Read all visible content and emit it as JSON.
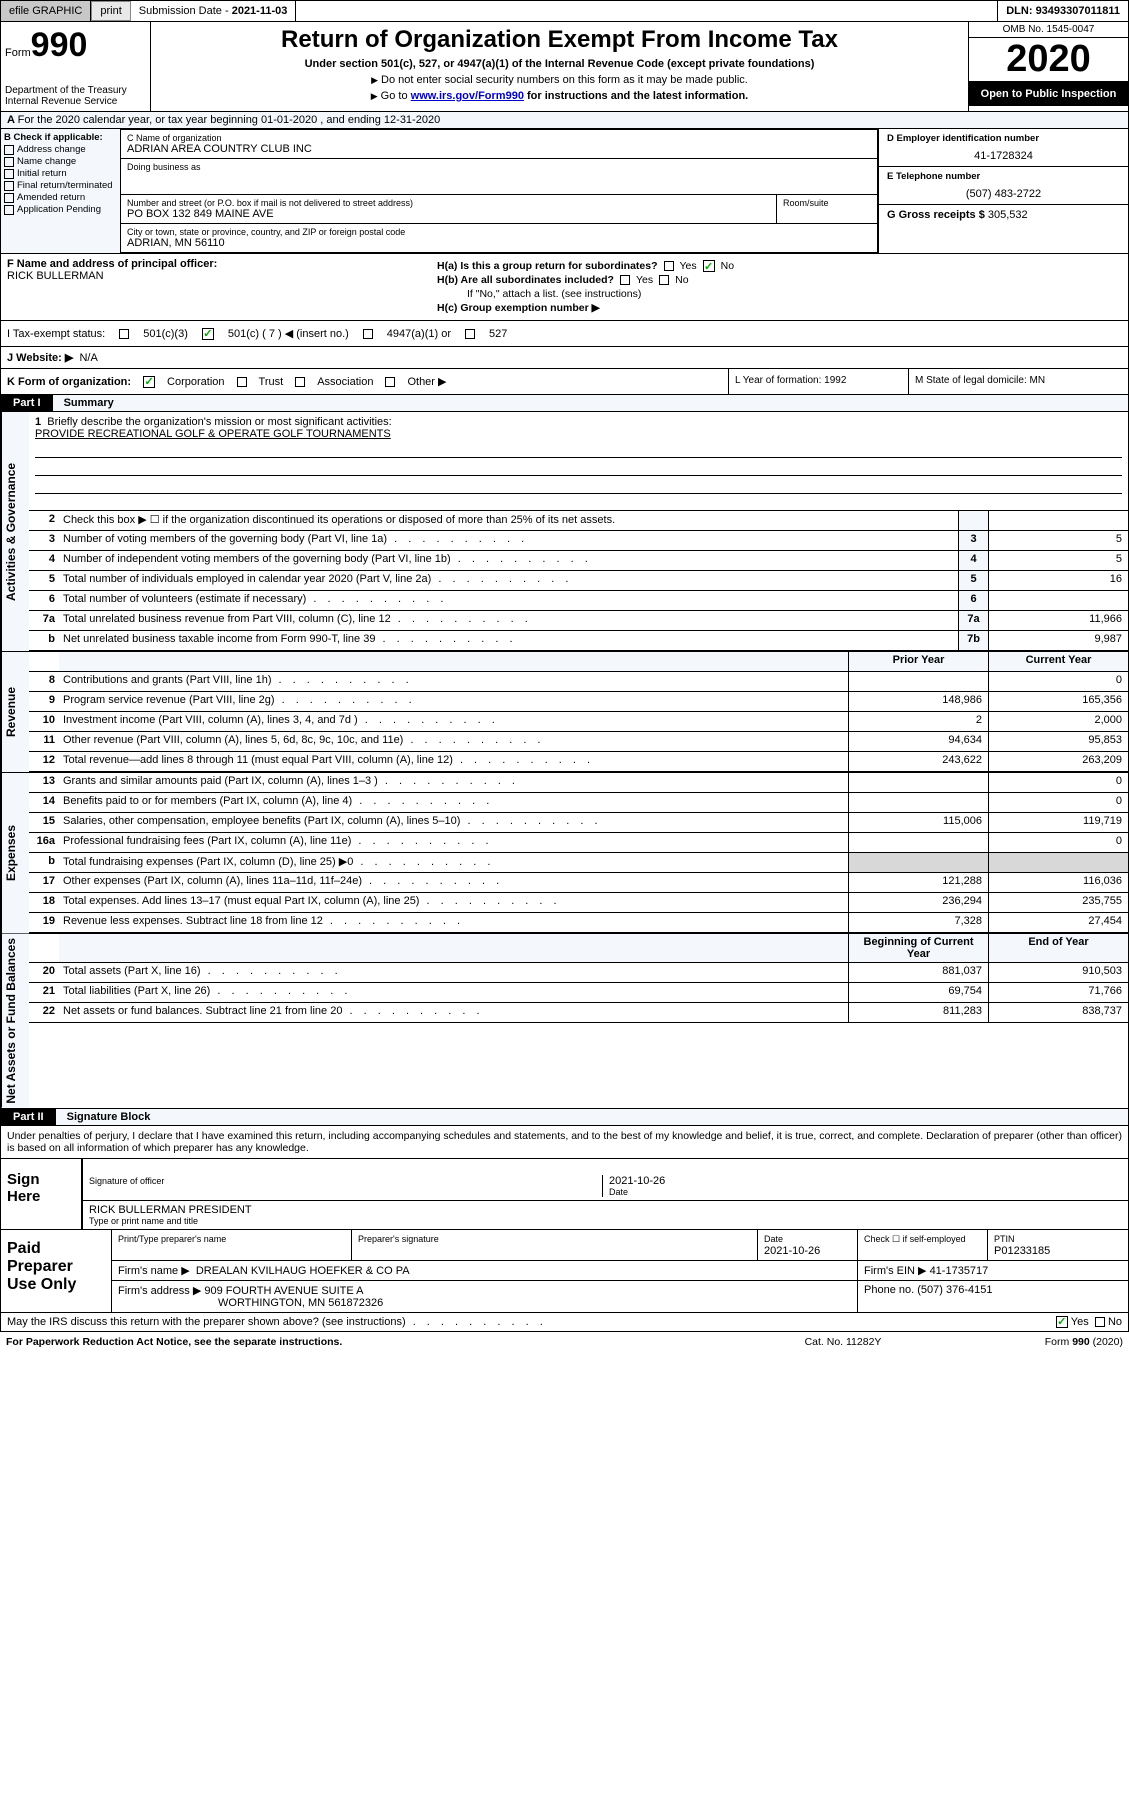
{
  "topbar": {
    "efile": "efile GRAPHIC",
    "print": "print",
    "submission": "Submission Date",
    "submission_date": "2021-11-03",
    "dln_label": "DLN:",
    "dln": "93493307011811"
  },
  "header": {
    "form": "Form",
    "num": "990",
    "dept": "Department of the Treasury",
    "irs": "Internal Revenue Service",
    "title": "Return of Organization Exempt From Income Tax",
    "sub": "Under section 501(c), 527, or 4947(a)(1) of the Internal Revenue Code (except private foundations)",
    "note1": "Do not enter social security numbers on this form as it may be made public.",
    "note2_pre": "Go to ",
    "note2_link": "www.irs.gov/Form990",
    "note2_post": " for instructions and the latest information.",
    "omb": "OMB No. 1545-0047",
    "year": "2020",
    "inspection": "Open to Public Inspection"
  },
  "period": {
    "label_a": "A",
    "text": "For the 2020 calendar year, or tax year beginning 01-01-2020    , and ending 12-31-2020"
  },
  "colB": {
    "label": "B Check if applicable:",
    "opts": [
      "Address change",
      "Name change",
      "Initial return",
      "Final return/terminated",
      "Amended return",
      "Application Pending"
    ]
  },
  "colC": {
    "name_label": "C Name of organization",
    "name": "ADRIAN AREA COUNTRY CLUB INC",
    "dba_label": "Doing business as",
    "street_label": "Number and street (or P.O. box if mail is not delivered to street address)",
    "street": "PO BOX 132 849 MAINE AVE",
    "room_label": "Room/suite",
    "city_label": "City or town, state or province, country, and ZIP or foreign postal code",
    "city": "ADRIAN, MN  56110"
  },
  "colD": {
    "d_label": "D Employer identification number",
    "ein": "41-1728324",
    "e_label": "E Telephone number",
    "phone": "(507) 483-2722",
    "g_label": "G Gross receipts $",
    "gross": "305,532"
  },
  "rowF": {
    "f_label": "F  Name and address of principal officer:",
    "officer": "RICK BULLERMAN",
    "ha": "H(a)  Is this a group return for subordinates?",
    "ha_yes": "Yes",
    "ha_no": "No",
    "hb": "H(b)  Are all subordinates included?",
    "hb_note": "If \"No,\" attach a list. (see instructions)",
    "hc": "H(c)  Group exemption number ▶"
  },
  "taxStatus": {
    "label": "I  Tax-exempt status:",
    "o1": "501(c)(3)",
    "o2": "501(c) ( 7 ) ◀ (insert no.)",
    "o3": "4947(a)(1) or",
    "o4": "527"
  },
  "website": {
    "label": "J  Website: ▶",
    "value": "N/A"
  },
  "rowK": {
    "label": "K Form of organization:",
    "o1": "Corporation",
    "o2": "Trust",
    "o3": "Association",
    "o4": "Other ▶",
    "l": "L Year of formation: 1992",
    "m": "M State of legal domicile: MN"
  },
  "part1": {
    "tag": "Part I",
    "title": "Summary"
  },
  "summary": {
    "q1": "Briefly describe the organization's mission or most significant activities:",
    "q1v": "PROVIDE RECREATIONAL GOLF & OPERATE GOLF TOURNAMENTS",
    "q2": "Check this box ▶ ☐  if the organization discontinued its operations or disposed of more than 25% of its net assets.",
    "rows": [
      {
        "n": "3",
        "d": "Number of voting members of the governing body (Part VI, line 1a)",
        "b": "3",
        "v": "5"
      },
      {
        "n": "4",
        "d": "Number of independent voting members of the governing body (Part VI, line 1b)",
        "b": "4",
        "v": "5"
      },
      {
        "n": "5",
        "d": "Total number of individuals employed in calendar year 2020 (Part V, line 2a)",
        "b": "5",
        "v": "16"
      },
      {
        "n": "6",
        "d": "Total number of volunteers (estimate if necessary)",
        "b": "6",
        "v": ""
      },
      {
        "n": "7a",
        "d": "Total unrelated business revenue from Part VIII, column (C), line 12",
        "b": "7a",
        "v": "11,966"
      },
      {
        "n": "b",
        "d": "Net unrelated business taxable income from Form 990-T, line 39",
        "b": "7b",
        "v": "9,987"
      }
    ],
    "hdr_prior": "Prior Year",
    "hdr_curr": "Current Year",
    "revenue": [
      {
        "n": "8",
        "d": "Contributions and grants (Part VIII, line 1h)",
        "p": "",
        "c": "0"
      },
      {
        "n": "9",
        "d": "Program service revenue (Part VIII, line 2g)",
        "p": "148,986",
        "c": "165,356"
      },
      {
        "n": "10",
        "d": "Investment income (Part VIII, column (A), lines 3, 4, and 7d )",
        "p": "2",
        "c": "2,000"
      },
      {
        "n": "11",
        "d": "Other revenue (Part VIII, column (A), lines 5, 6d, 8c, 9c, 10c, and 11e)",
        "p": "94,634",
        "c": "95,853"
      },
      {
        "n": "12",
        "d": "Total revenue—add lines 8 through 11 (must equal Part VIII, column (A), line 12)",
        "p": "243,622",
        "c": "263,209"
      }
    ],
    "expenses": [
      {
        "n": "13",
        "d": "Grants and similar amounts paid (Part IX, column (A), lines 1–3 )",
        "p": "",
        "c": "0"
      },
      {
        "n": "14",
        "d": "Benefits paid to or for members (Part IX, column (A), line 4)",
        "p": "",
        "c": "0"
      },
      {
        "n": "15",
        "d": "Salaries, other compensation, employee benefits (Part IX, column (A), lines 5–10)",
        "p": "115,006",
        "c": "119,719"
      },
      {
        "n": "16a",
        "d": "Professional fundraising fees (Part IX, column (A), line 11e)",
        "p": "",
        "c": "0"
      },
      {
        "n": "b",
        "d": "Total fundraising expenses (Part IX, column (D), line 25) ▶0",
        "p": "—",
        "c": "—"
      },
      {
        "n": "17",
        "d": "Other expenses (Part IX, column (A), lines 11a–11d, 11f–24e)",
        "p": "121,288",
        "c": "116,036"
      },
      {
        "n": "18",
        "d": "Total expenses. Add lines 13–17 (must equal Part IX, column (A), line 25)",
        "p": "236,294",
        "c": "235,755"
      },
      {
        "n": "19",
        "d": "Revenue less expenses. Subtract line 18 from line 12",
        "p": "7,328",
        "c": "27,454"
      }
    ],
    "hdr_begin": "Beginning of Current Year",
    "hdr_end": "End of Year",
    "netassets": [
      {
        "n": "20",
        "d": "Total assets (Part X, line 16)",
        "p": "881,037",
        "c": "910,503"
      },
      {
        "n": "21",
        "d": "Total liabilities (Part X, line 26)",
        "p": "69,754",
        "c": "71,766"
      },
      {
        "n": "22",
        "d": "Net assets or fund balances. Subtract line 21 from line 20",
        "p": "811,283",
        "c": "838,737"
      }
    ]
  },
  "sideLabels": {
    "gov": "Activities & Governance",
    "rev": "Revenue",
    "exp": "Expenses",
    "net": "Net Assets or Fund Balances"
  },
  "part2": {
    "tag": "Part II",
    "title": "Signature Block"
  },
  "sig": {
    "penalty": "Under penalties of perjury, I declare that I have examined this return, including accompanying schedules and statements, and to the best of my knowledge and belief, it is true, correct, and complete. Declaration of preparer (other than officer) is based on all information of which preparer has any knowledge.",
    "sign_here": "Sign Here",
    "sig_officer": "Signature of officer",
    "date_label": "Date",
    "date": "2021-10-26",
    "name_title": "RICK BULLERMAN  PRESIDENT",
    "type_label": "Type or print name and title"
  },
  "prep": {
    "label": "Paid Preparer Use Only",
    "h1": "Print/Type preparer's name",
    "h2": "Preparer's signature",
    "h3": "Date",
    "h3v": "2021-10-26",
    "h4": "Check ☐ if self-employed",
    "h5": "PTIN",
    "ptin": "P01233185",
    "firm_label": "Firm's name    ▶",
    "firm": "DREALAN KVILHAUG HOEFKER & CO PA",
    "ein_label": "Firm's EIN ▶",
    "ein": "41-1735717",
    "addr_label": "Firm's address ▶",
    "addr1": "909 FOURTH AVENUE SUITE A",
    "addr2": "WORTHINGTON, MN  561872326",
    "phone_label": "Phone no.",
    "phone": "(507) 376-4151"
  },
  "footer": {
    "discuss": "May the IRS discuss this return with the preparer shown above? (see instructions)",
    "yes": "Yes",
    "no": "No",
    "paperwork": "For Paperwork Reduction Act Notice, see the separate instructions.",
    "cat": "Cat. No. 11282Y",
    "form": "Form 990 (2020)"
  }
}
